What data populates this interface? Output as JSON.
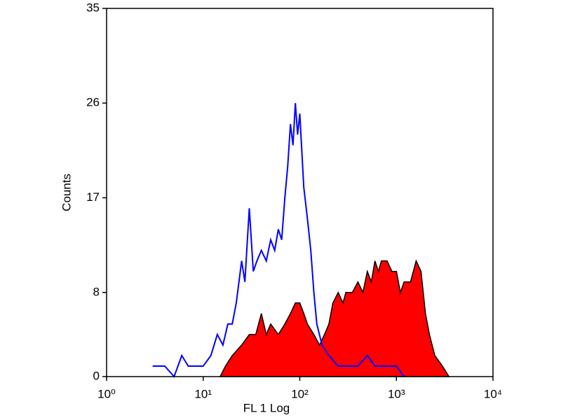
{
  "chart_data": {
    "type": "histogram-overlay",
    "xlabel": "FL 1 Log",
    "ylabel": "Counts",
    "xscale": "log",
    "xlim": [
      1,
      10000
    ],
    "xticks": [
      {
        "value": 1,
        "label": "10⁰"
      },
      {
        "value": 10,
        "label": "10¹"
      },
      {
        "value": 100,
        "label": "10²"
      },
      {
        "value": 1000,
        "label": "10³"
      },
      {
        "value": 10000,
        "label": "10⁴"
      }
    ],
    "ylim": [
      0,
      35
    ],
    "yticks": [
      0,
      8,
      17,
      26,
      35
    ],
    "series": [
      {
        "color": "#0000ff",
        "fill": false,
        "x": [
          3,
          3.5,
          4,
          5,
          6,
          7,
          8,
          10,
          12,
          14,
          16,
          18,
          20,
          22,
          25,
          27,
          30,
          33,
          36,
          40,
          45,
          50,
          55,
          60,
          65,
          70,
          75,
          80,
          85,
          90,
          95,
          100,
          110,
          120,
          130,
          140,
          150,
          170,
          200,
          250,
          300,
          400,
          500,
          600,
          800,
          1000,
          1200
        ],
        "values": [
          1,
          1,
          1,
          0,
          2,
          1,
          1,
          1,
          2,
          4,
          3,
          5,
          5,
          7,
          11,
          9,
          16,
          10,
          11,
          12,
          11,
          13,
          12,
          14,
          13,
          17,
          20,
          24,
          22,
          26,
          23,
          25,
          18,
          15,
          12,
          8,
          5,
          3,
          2,
          1,
          1,
          1,
          2,
          1,
          1,
          1,
          0
        ]
      },
      {
        "color": "#ff0000",
        "edgecolor": "#000000",
        "fill": true,
        "x": [
          15,
          17,
          20,
          25,
          30,
          35,
          40,
          45,
          50,
          60,
          70,
          80,
          90,
          100,
          110,
          120,
          140,
          160,
          180,
          200,
          220,
          250,
          280,
          300,
          350,
          400,
          450,
          500,
          550,
          600,
          650,
          700,
          800,
          900,
          1000,
          1100,
          1200,
          1400,
          1600,
          1800,
          2000,
          2200,
          2500,
          3000,
          3500
        ],
        "values": [
          0,
          1,
          2,
          3,
          4,
          4,
          6,
          4,
          5,
          4,
          5,
          6,
          7,
          7,
          6,
          5,
          4,
          3,
          4,
          5,
          7,
          8,
          7,
          8,
          8,
          9,
          8,
          10,
          9,
          11,
          10,
          11,
          11,
          10,
          10,
          8,
          9,
          9,
          11,
          10,
          6,
          4,
          2,
          1,
          0
        ]
      }
    ]
  }
}
